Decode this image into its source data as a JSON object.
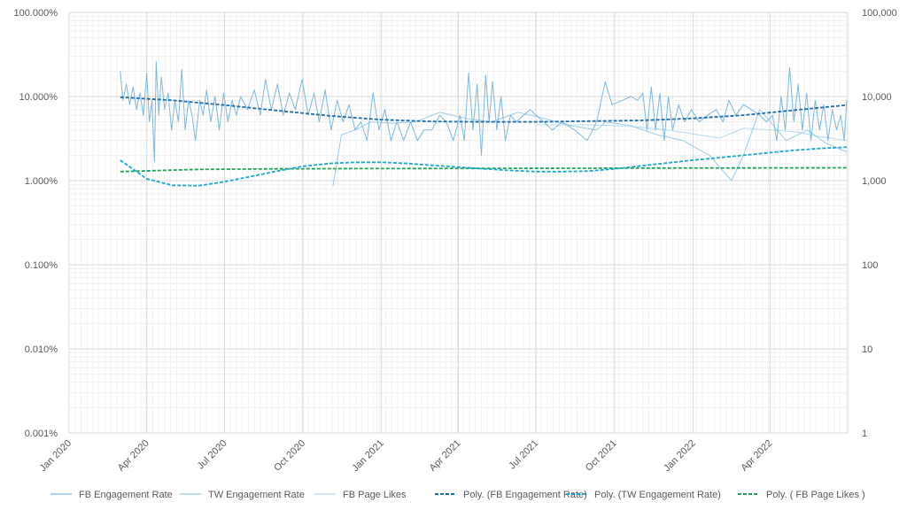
{
  "chart_data": {
    "type": "line",
    "title": "",
    "x_axis": {
      "type": "date",
      "range": [
        "2020-01-01",
        "2022-07-01"
      ],
      "tick_labels": [
        "Jan 2020",
        "Apr 2020",
        "Jul 2020",
        "Oct 2020",
        "Jan 2021",
        "Apr 2021",
        "Jul 2021",
        "Oct 2021",
        "Jan 2022",
        "Apr 2022"
      ],
      "tick_dates": [
        "2020-01-01",
        "2020-04-01",
        "2020-07-01",
        "2020-10-01",
        "2021-01-01",
        "2021-04-01",
        "2021-07-01",
        "2021-10-01",
        "2022-01-01",
        "2022-04-01"
      ]
    },
    "y_left": {
      "scale": "log",
      "range": [
        0.001,
        100
      ],
      "unit": "%",
      "tick_values": [
        100,
        10,
        1,
        0.1,
        0.01,
        0.001
      ],
      "tick_labels": [
        "100.000%",
        "10.000%",
        "1.000%",
        "0.100%",
        "0.010%",
        "0.001%"
      ]
    },
    "y_right": {
      "scale": "log",
      "range": [
        1,
        100000
      ],
      "tick_values": [
        100000,
        10000,
        1000,
        100,
        10,
        1
      ],
      "tick_labels": [
        "100,000",
        "10,000",
        "1,000",
        "100",
        "10",
        "1"
      ]
    },
    "grid": true,
    "legend_position": "bottom",
    "series": [
      {
        "name": "FB Engagement Rate",
        "axis": "left",
        "style": "solid",
        "color": "#7fb8dd",
        "points": [
          [
            "2020-03-01",
            20
          ],
          [
            "2020-03-04",
            9
          ],
          [
            "2020-03-08",
            14
          ],
          [
            "2020-03-12",
            8
          ],
          [
            "2020-03-16",
            13
          ],
          [
            "2020-03-20",
            7
          ],
          [
            "2020-03-24",
            11
          ],
          [
            "2020-03-28",
            6
          ],
          [
            "2020-04-01",
            19
          ],
          [
            "2020-04-04",
            5
          ],
          [
            "2020-04-07",
            9
          ],
          [
            "2020-04-10",
            1.7
          ],
          [
            "2020-04-12",
            26
          ],
          [
            "2020-04-15",
            6
          ],
          [
            "2020-04-18",
            17
          ],
          [
            "2020-04-22",
            7
          ],
          [
            "2020-04-26",
            11
          ],
          [
            "2020-04-30",
            4
          ],
          [
            "2020-05-04",
            9
          ],
          [
            "2020-05-08",
            5
          ],
          [
            "2020-05-12",
            21
          ],
          [
            "2020-05-16",
            4
          ],
          [
            "2020-05-20",
            9
          ],
          [
            "2020-05-24",
            6
          ],
          [
            "2020-05-28",
            3
          ],
          [
            "2020-06-02",
            9
          ],
          [
            "2020-06-06",
            6
          ],
          [
            "2020-06-10",
            12
          ],
          [
            "2020-06-15",
            5
          ],
          [
            "2020-06-20",
            10
          ],
          [
            "2020-06-25",
            4
          ],
          [
            "2020-06-30",
            11
          ],
          [
            "2020-07-05",
            5
          ],
          [
            "2020-07-10",
            9
          ],
          [
            "2020-07-15",
            6
          ],
          [
            "2020-07-20",
            10
          ],
          [
            "2020-07-28",
            7
          ],
          [
            "2020-08-05",
            12
          ],
          [
            "2020-08-12",
            6
          ],
          [
            "2020-08-18",
            16
          ],
          [
            "2020-08-25",
            7
          ],
          [
            "2020-09-01",
            14
          ],
          [
            "2020-09-08",
            6
          ],
          [
            "2020-09-15",
            11
          ],
          [
            "2020-09-22",
            7
          ],
          [
            "2020-09-30",
            16
          ],
          [
            "2020-10-07",
            6
          ],
          [
            "2020-10-14",
            11
          ],
          [
            "2020-10-20",
            5
          ],
          [
            "2020-10-27",
            12
          ],
          [
            "2020-11-03",
            4
          ],
          [
            "2020-11-10",
            9
          ],
          [
            "2020-11-17",
            5
          ],
          [
            "2020-11-24",
            8
          ],
          [
            "2020-12-01",
            4
          ],
          [
            "2020-12-08",
            5
          ],
          [
            "2020-12-15",
            3
          ],
          [
            "2020-12-22",
            11
          ],
          [
            "2020-12-29",
            4
          ],
          [
            "2021-01-05",
            7
          ],
          [
            "2021-01-12",
            3
          ],
          [
            "2021-01-19",
            5
          ],
          [
            "2021-01-27",
            3
          ],
          [
            "2021-02-04",
            5
          ],
          [
            "2021-02-12",
            3
          ],
          [
            "2021-02-20",
            4
          ],
          [
            "2021-03-01",
            4
          ],
          [
            "2021-03-10",
            6
          ],
          [
            "2021-03-18",
            5
          ],
          [
            "2021-03-26",
            3
          ],
          [
            "2021-04-03",
            6
          ],
          [
            "2021-04-08",
            3
          ],
          [
            "2021-04-13",
            19
          ],
          [
            "2021-04-18",
            4
          ],
          [
            "2021-04-23",
            14
          ],
          [
            "2021-04-28",
            2
          ],
          [
            "2021-05-03",
            18
          ],
          [
            "2021-05-07",
            5
          ],
          [
            "2021-05-11",
            15
          ],
          [
            "2021-05-16",
            4
          ],
          [
            "2021-05-21",
            10
          ],
          [
            "2021-05-26",
            3
          ],
          [
            "2021-06-01",
            6
          ],
          [
            "2021-06-08",
            5
          ],
          [
            "2021-06-16",
            6
          ],
          [
            "2021-06-24",
            7
          ],
          [
            "2021-07-01",
            6
          ],
          [
            "2021-07-10",
            5
          ],
          [
            "2021-07-20",
            4
          ],
          [
            "2021-08-01",
            5
          ],
          [
            "2021-08-15",
            4
          ],
          [
            "2021-08-30",
            3
          ],
          [
            "2021-09-10",
            5
          ],
          [
            "2021-09-20",
            15
          ],
          [
            "2021-09-28",
            8
          ],
          [
            "2021-10-10",
            9
          ],
          [
            "2021-10-20",
            10
          ],
          [
            "2021-10-28",
            9
          ],
          [
            "2021-11-03",
            11
          ],
          [
            "2021-11-08",
            4
          ],
          [
            "2021-11-13",
            13
          ],
          [
            "2021-11-18",
            4
          ],
          [
            "2021-11-23",
            11
          ],
          [
            "2021-11-28",
            3
          ],
          [
            "2021-12-03",
            10
          ],
          [
            "2021-12-08",
            4
          ],
          [
            "2021-12-15",
            8
          ],
          [
            "2021-12-22",
            5
          ],
          [
            "2021-12-30",
            7
          ],
          [
            "2022-01-08",
            5
          ],
          [
            "2022-01-18",
            6
          ],
          [
            "2022-01-28",
            7
          ],
          [
            "2022-02-05",
            5
          ],
          [
            "2022-02-12",
            9
          ],
          [
            "2022-02-20",
            6
          ],
          [
            "2022-03-01",
            8
          ],
          [
            "2022-03-10",
            7
          ],
          [
            "2022-03-20",
            6
          ],
          [
            "2022-03-28",
            5
          ],
          [
            "2022-04-04",
            6
          ],
          [
            "2022-04-09",
            3
          ],
          [
            "2022-04-14",
            10
          ],
          [
            "2022-04-19",
            4
          ],
          [
            "2022-04-24",
            22
          ],
          [
            "2022-04-29",
            5
          ],
          [
            "2022-05-04",
            14
          ],
          [
            "2022-05-09",
            4
          ],
          [
            "2022-05-14",
            11
          ],
          [
            "2022-05-19",
            3
          ],
          [
            "2022-05-24",
            9
          ],
          [
            "2022-05-29",
            4
          ],
          [
            "2022-06-03",
            8
          ],
          [
            "2022-06-08",
            3
          ],
          [
            "2022-06-13",
            7
          ],
          [
            "2022-06-18",
            4
          ],
          [
            "2022-06-23",
            6
          ],
          [
            "2022-06-27",
            3
          ],
          [
            "2022-06-30",
            9
          ]
        ]
      },
      {
        "name": "TW Engagement Rate",
        "axis": "left",
        "style": "solid",
        "color": "#9fcbe5",
        "points": [
          [
            "2020-11-05",
            0.85
          ],
          [
            "2020-11-15",
            3.5
          ],
          [
            "2020-12-01",
            4
          ],
          [
            "2020-12-20",
            5
          ],
          [
            "2021-01-15",
            4.8
          ],
          [
            "2021-02-10",
            5
          ],
          [
            "2021-03-10",
            6.5
          ],
          [
            "2021-04-10",
            5.5
          ],
          [
            "2021-05-10",
            5
          ],
          [
            "2021-06-10",
            6.5
          ],
          [
            "2021-07-10",
            5.5
          ],
          [
            "2021-08-10",
            4.5
          ],
          [
            "2021-09-10",
            4
          ],
          [
            "2021-09-20",
            5
          ],
          [
            "2021-10-20",
            4.5
          ],
          [
            "2021-11-20",
            3.5
          ],
          [
            "2021-12-20",
            3
          ],
          [
            "2022-01-20",
            2
          ],
          [
            "2022-02-15",
            1.0
          ],
          [
            "2022-03-01",
            2
          ],
          [
            "2022-03-20",
            7
          ],
          [
            "2022-04-20",
            3
          ],
          [
            "2022-05-15",
            4
          ],
          [
            "2022-06-05",
            2.8
          ],
          [
            "2022-06-30",
            2.2
          ]
        ]
      },
      {
        "name": "FB Page Likes",
        "axis": "right",
        "style": "solid",
        "color": "#b8dbee",
        "points": [
          [
            "2021-07-01",
            4600
          ],
          [
            "2021-08-01",
            4600
          ],
          [
            "2021-09-01",
            4600
          ],
          [
            "2021-10-01",
            4500
          ],
          [
            "2021-11-01",
            4300
          ],
          [
            "2021-12-01",
            4000
          ],
          [
            "2022-01-01",
            3600
          ],
          [
            "2022-02-01",
            3200
          ],
          [
            "2022-03-01",
            4200
          ],
          [
            "2022-04-01",
            4000
          ],
          [
            "2022-05-01",
            3800
          ],
          [
            "2022-06-01",
            3300
          ],
          [
            "2022-06-30",
            3000
          ]
        ]
      },
      {
        "name": "Poly. (FB Engagement Rate)",
        "axis": "left",
        "style": "dashed",
        "color": "#1f6ea8",
        "points": [
          [
            "2020-03-01",
            9.8
          ],
          [
            "2020-05-01",
            9.0
          ],
          [
            "2020-07-01",
            7.9
          ],
          [
            "2020-09-01",
            6.8
          ],
          [
            "2020-11-01",
            5.9
          ],
          [
            "2021-01-01",
            5.3
          ],
          [
            "2021-03-01",
            5.05
          ],
          [
            "2021-05-01",
            5.0
          ],
          [
            "2021-07-01",
            5.0
          ],
          [
            "2021-09-01",
            5.1
          ],
          [
            "2021-11-01",
            5.2
          ],
          [
            "2022-01-01",
            5.5
          ],
          [
            "2022-03-01",
            6.0
          ],
          [
            "2022-05-01",
            6.9
          ],
          [
            "2022-06-30",
            7.9
          ]
        ]
      },
      {
        "name": "Poly. (TW Engagement Rate)",
        "axis": "left",
        "style": "dashed",
        "color": "#1ea5d0",
        "points": [
          [
            "2020-03-01",
            1.75
          ],
          [
            "2020-04-01",
            1.05
          ],
          [
            "2020-05-01",
            0.88
          ],
          [
            "2020-06-01",
            0.87
          ],
          [
            "2020-07-01",
            0.97
          ],
          [
            "2020-08-01",
            1.12
          ],
          [
            "2020-09-01",
            1.3
          ],
          [
            "2020-10-01",
            1.48
          ],
          [
            "2020-11-01",
            1.6
          ],
          [
            "2020-12-01",
            1.65
          ],
          [
            "2021-01-01",
            1.65
          ],
          [
            "2021-02-01",
            1.6
          ],
          [
            "2021-03-01",
            1.52
          ],
          [
            "2021-04-01",
            1.45
          ],
          [
            "2021-05-01",
            1.38
          ],
          [
            "2021-06-01",
            1.32
          ],
          [
            "2021-07-01",
            1.28
          ],
          [
            "2021-08-01",
            1.28
          ],
          [
            "2021-09-01",
            1.3
          ],
          [
            "2021-10-01",
            1.38
          ],
          [
            "2021-11-01",
            1.5
          ],
          [
            "2021-12-01",
            1.62
          ],
          [
            "2022-01-01",
            1.75
          ],
          [
            "2022-02-01",
            1.88
          ],
          [
            "2022-03-01",
            2.0
          ],
          [
            "2022-04-01",
            2.15
          ],
          [
            "2022-05-01",
            2.3
          ],
          [
            "2022-06-01",
            2.42
          ],
          [
            "2022-06-30",
            2.5
          ]
        ]
      },
      {
        "name": "Poly. ( FB Page Likes )",
        "axis": "right",
        "style": "dashed",
        "color": "#22a35a",
        "points": [
          [
            "2020-03-01",
            1280
          ],
          [
            "2020-06-01",
            1360
          ],
          [
            "2020-09-01",
            1380
          ],
          [
            "2020-12-01",
            1390
          ],
          [
            "2021-03-01",
            1395
          ],
          [
            "2021-06-01",
            1400
          ],
          [
            "2021-09-01",
            1405
          ],
          [
            "2021-12-01",
            1410
          ],
          [
            "2022-03-01",
            1415
          ],
          [
            "2022-06-30",
            1420
          ]
        ]
      }
    ]
  }
}
